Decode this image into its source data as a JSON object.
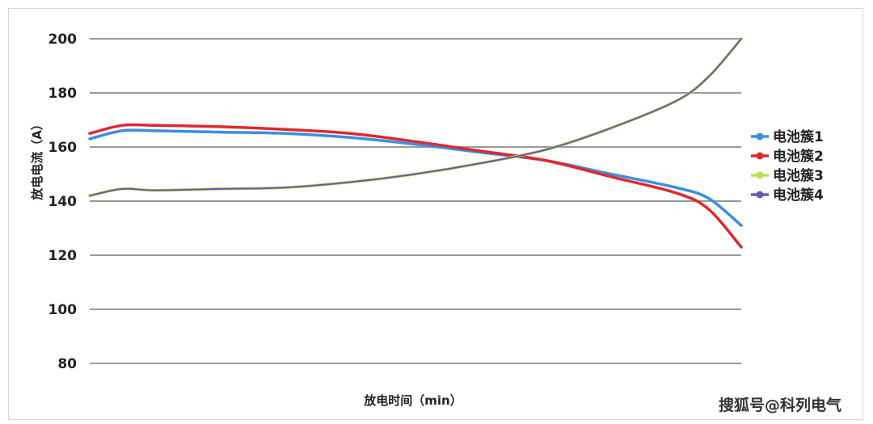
{
  "chart_data": {
    "type": "line",
    "xlabel": "放电时间（min）",
    "ylabel": "放电电流（A）",
    "ylim": [
      80,
      200
    ],
    "y_ticks": [
      80,
      100,
      120,
      140,
      160,
      180,
      200
    ],
    "grid": true,
    "legend_position": "right",
    "x": [
      0,
      5,
      10,
      20,
      30,
      40,
      50,
      60,
      70,
      80,
      90,
      95,
      100
    ],
    "series": [
      {
        "name": "电池簇1",
        "color": "#3a8fde",
        "values": [
          163,
          166,
          166,
          165.5,
          165,
          163.5,
          161,
          158,
          155,
          150,
          145,
          141,
          131
        ]
      },
      {
        "name": "电池簇2",
        "color": "#e0282e",
        "values": [
          165,
          168,
          168,
          167.5,
          166.5,
          165,
          162,
          158.5,
          155,
          149,
          143,
          137,
          123
        ]
      },
      {
        "name": "电池簇3",
        "color": "#b8e04a",
        "values": [
          142,
          144.5,
          144,
          144.5,
          145,
          147,
          150,
          154,
          159,
          167,
          177,
          186,
          200
        ]
      },
      {
        "name": "电池簇4",
        "color": "#6b56b0",
        "values": [
          142,
          144.5,
          144,
          144.5,
          145,
          147,
          150,
          154,
          159,
          167,
          177,
          186,
          200
        ]
      }
    ]
  },
  "watermark": "搜狐号@科列电气"
}
